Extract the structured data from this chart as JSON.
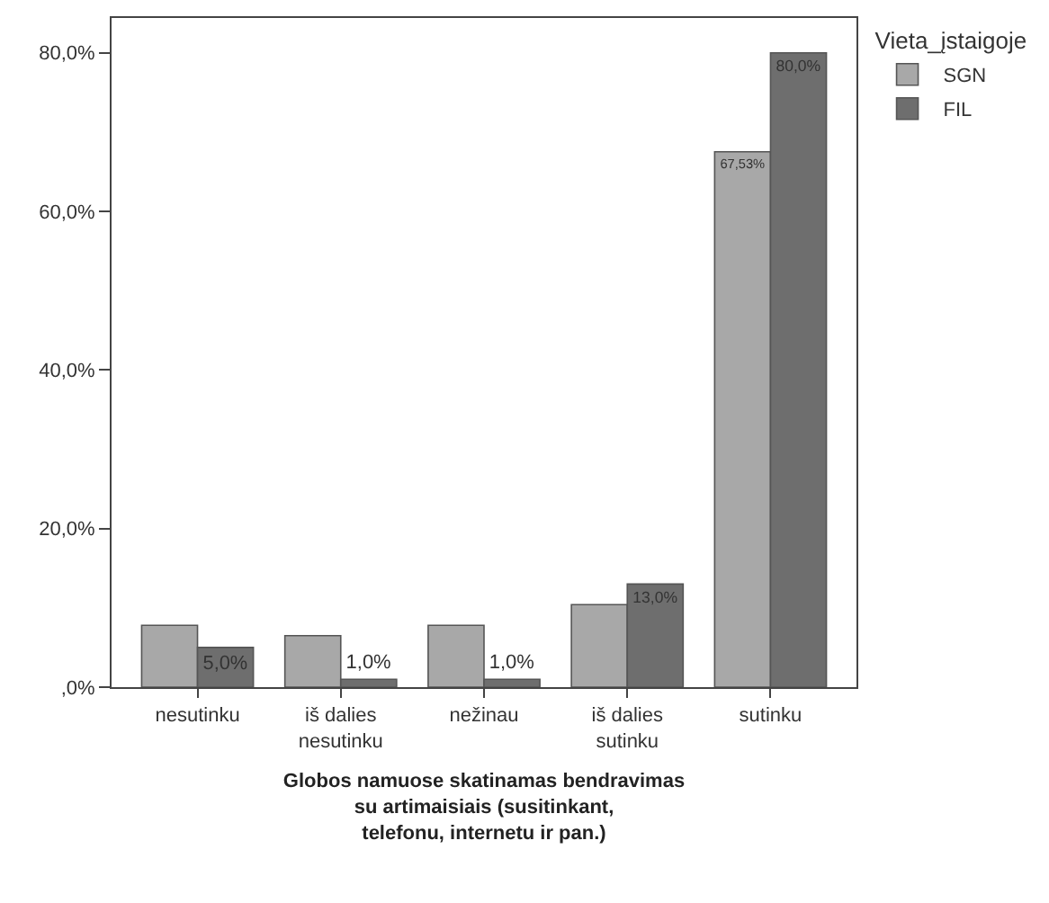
{
  "chart_data": {
    "type": "bar",
    "xlabel": "Globos namuose skatinamas bendravimas su artimaisiais (susitinkant, telefonu, internetu ir pan.)",
    "legend_title": "Vieta_įstaigoje",
    "categories": [
      "nesutinku",
      "iš dalies nesutinku",
      "nežinau",
      "iš dalies sutinku",
      "sutinku"
    ],
    "series": [
      {
        "name": "SGN",
        "color": "#a8a8a8",
        "values": [
          7.8,
          6.5,
          7.8,
          10.4,
          67.53
        ],
        "value_labels": [
          null,
          null,
          null,
          null,
          "67,53%"
        ]
      },
      {
        "name": "FIL",
        "color": "#6e6e6e",
        "values": [
          5.0,
          1.0,
          1.0,
          13.0,
          80.0
        ],
        "value_labels": [
          "5,0%",
          "1,0%",
          "1,0%",
          "13,0%",
          "80,0%"
        ]
      }
    ],
    "ylim": [
      0,
      84.4
    ],
    "yticks": [
      {
        "value": 0,
        "label": ",0%"
      },
      {
        "value": 20,
        "label": "20,0%"
      },
      {
        "value": 40,
        "label": "40,0%"
      },
      {
        "value": 60,
        "label": "60,0%"
      },
      {
        "value": 80,
        "label": "80,0%"
      }
    ],
    "grid": false,
    "legend": "top right"
  }
}
